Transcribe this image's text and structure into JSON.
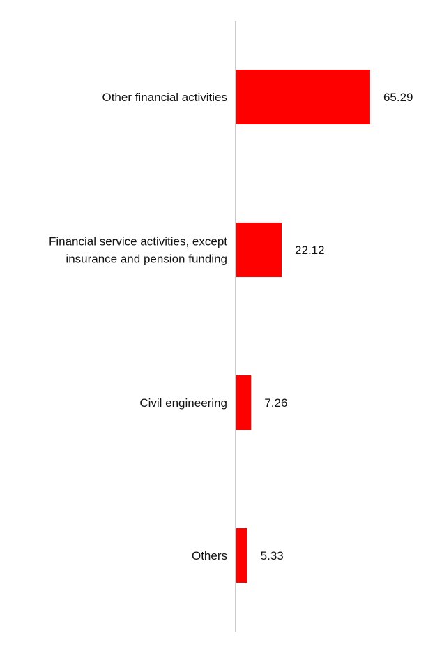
{
  "chart_data": {
    "type": "bar",
    "orientation": "horizontal",
    "categories": [
      [
        "Other financial activities"
      ],
      [
        "Financial service activities, except",
        "insurance and pension funding"
      ],
      [
        "Civil engineering"
      ],
      [
        "Others"
      ]
    ],
    "values": [
      65.29,
      22.12,
      7.26,
      5.33
    ],
    "value_labels": [
      "65.29",
      "22.12",
      "7.26",
      "5.33"
    ],
    "bar_color": "#ff0000",
    "axis_color": "#cccccc",
    "grid": false,
    "legend": "none"
  }
}
